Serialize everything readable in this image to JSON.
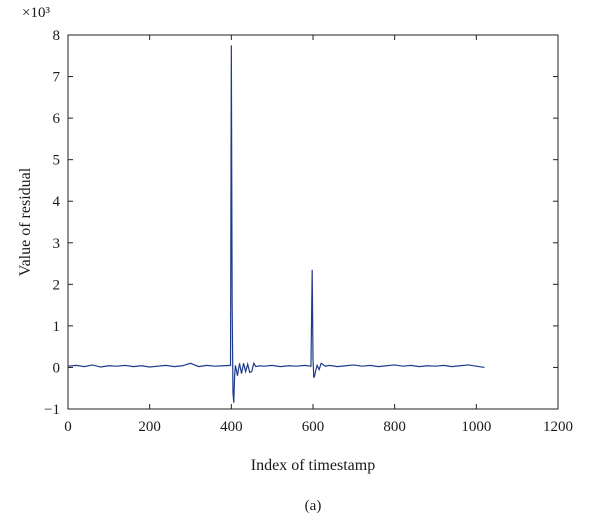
{
  "chart_data": {
    "type": "line",
    "xlabel": "Index of timestamp",
    "ylabel": "Value of residual",
    "y_multiplier": "×10³",
    "caption": "(a)",
    "xlim": [
      0,
      1200
    ],
    "ylim": [
      -1,
      8
    ],
    "x_ticks": [
      0,
      200,
      400,
      600,
      800,
      1000,
      1200
    ],
    "y_ticks": [
      -1,
      0,
      1,
      2,
      3,
      4,
      5,
      6,
      7,
      8
    ],
    "grid": false,
    "line_color": "#1f3b8c",
    "series": [
      {
        "x": [
          0,
          20,
          40,
          60,
          80,
          100,
          120,
          140,
          160,
          180,
          200,
          220,
          240,
          260,
          280,
          300,
          320,
          340,
          360,
          380,
          398,
          400,
          402,
          404,
          406,
          408,
          410,
          415,
          420,
          425,
          430,
          435,
          440,
          445,
          450,
          455,
          460,
          470,
          480,
          500,
          520,
          540,
          560,
          580,
          595,
          598,
          600,
          602,
          604,
          606,
          610,
          615,
          620,
          630,
          640,
          660,
          680,
          700,
          720,
          740,
          760,
          780,
          800,
          820,
          840,
          860,
          880,
          900,
          920,
          940,
          960,
          980,
          1000,
          1020
        ],
        "y": [
          0.03,
          0.05,
          0.02,
          0.06,
          0.01,
          0.04,
          0.03,
          0.05,
          0.02,
          0.04,
          0.01,
          0.03,
          0.05,
          0.02,
          0.04,
          0.1,
          0.02,
          0.05,
          0.03,
          0.04,
          0.05,
          7.75,
          1.5,
          -0.6,
          -0.85,
          -0.2,
          0.05,
          -0.2,
          0.1,
          -0.15,
          0.1,
          -0.1,
          0.08,
          -0.12,
          -0.1,
          0.1,
          0.02,
          0.04,
          0.03,
          0.05,
          0.02,
          0.04,
          0.03,
          0.05,
          0.03,
          2.35,
          0.2,
          -0.25,
          -0.2,
          -0.1,
          0.05,
          -0.05,
          0.1,
          0.03,
          0.05,
          0.02,
          0.04,
          0.06,
          0.03,
          0.05,
          0.02,
          0.04,
          0.06,
          0.03,
          0.05,
          0.02,
          0.04,
          0.03,
          0.05,
          0.02,
          0.04,
          0.06,
          0.03,
          0.0
        ]
      }
    ]
  }
}
